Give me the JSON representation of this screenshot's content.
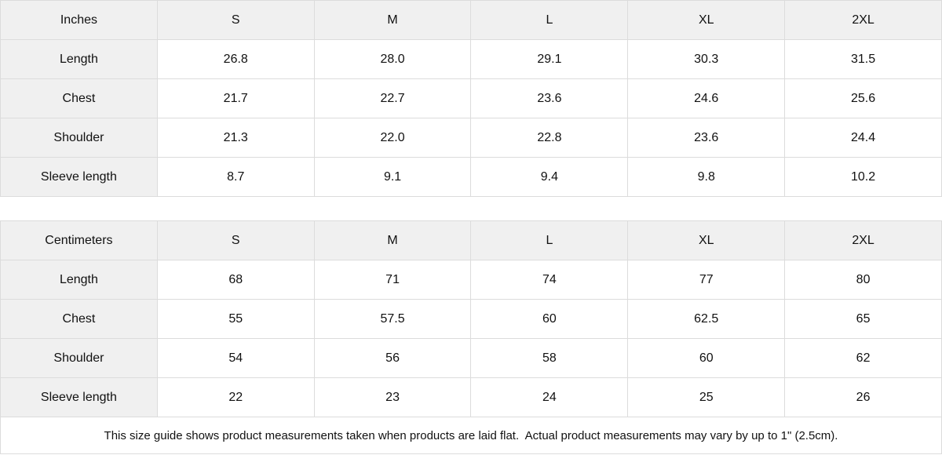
{
  "tables": [
    {
      "id": "inches",
      "unit_label": "Inches",
      "sizes": [
        "S",
        "M",
        "L",
        "XL",
        "2XL"
      ],
      "rows": [
        {
          "label": "Length",
          "values": [
            "26.8",
            "28.0",
            "29.1",
            "30.3",
            "31.5"
          ]
        },
        {
          "label": "Chest",
          "values": [
            "21.7",
            "22.7",
            "23.6",
            "24.6",
            "25.6"
          ]
        },
        {
          "label": "Shoulder",
          "values": [
            "21.3",
            "22.0",
            "22.8",
            "23.6",
            "24.4"
          ]
        },
        {
          "label": "Sleeve length",
          "values": [
            "8.7",
            "9.1",
            "9.4",
            "9.8",
            "10.2"
          ]
        }
      ]
    },
    {
      "id": "centimeters",
      "unit_label": "Centimeters",
      "sizes": [
        "S",
        "M",
        "L",
        "XL",
        "2XL"
      ],
      "rows": [
        {
          "label": "Length",
          "values": [
            "68",
            "71",
            "74",
            "77",
            "80"
          ]
        },
        {
          "label": "Chest",
          "values": [
            "55",
            "57.5",
            "60",
            "62.5",
            "65"
          ]
        },
        {
          "label": "Shoulder",
          "values": [
            "54",
            "56",
            "58",
            "60",
            "62"
          ]
        },
        {
          "label": "Sleeve length",
          "values": [
            "22",
            "23",
            "24",
            "25",
            "26"
          ]
        }
      ]
    }
  ],
  "footer": {
    "note": "This size guide shows product measurements taken when products are laid flat.  Actual product measurements may vary by up to 1\" (2.5cm)."
  },
  "colors": {
    "header_background": "#f0f0f0",
    "cell_background": "#ffffff",
    "border": "#dcdcdc",
    "text": "#111111"
  }
}
